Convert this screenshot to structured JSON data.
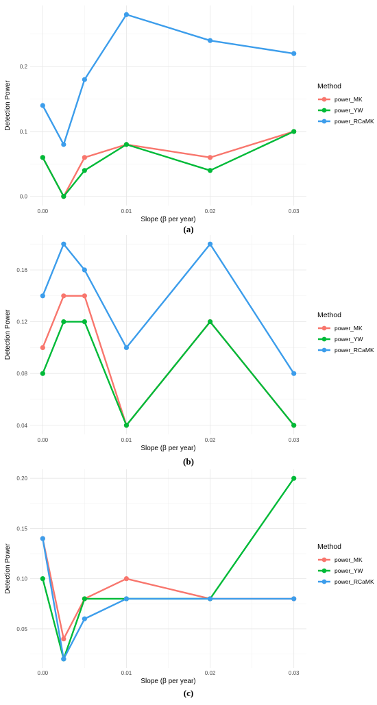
{
  "colors": {
    "power_MK": "#F8766D",
    "power_YW": "#00BA38",
    "power_RCaMK": "#3C9DEB"
  },
  "chart_data": [
    {
      "type": "line",
      "panel_label": "(a)",
      "xlabel": "Slope (β per year)",
      "ylabel": "Detection Power",
      "x": [
        0.0,
        0.0025,
        0.005,
        0.01,
        0.02,
        0.03
      ],
      "xticks": [
        "0.00",
        "0.01",
        "0.02",
        "0.03"
      ],
      "xtick_values": [
        0.0,
        0.01,
        0.02,
        0.03
      ],
      "yticks": [
        "0.0",
        "0.1",
        "0.2"
      ],
      "ytick_values": [
        0.0,
        0.1,
        0.2
      ],
      "xlim": [
        -0.0015,
        0.0315
      ],
      "ylim": [
        -0.014,
        0.294
      ],
      "legend_title": "Method",
      "legend_position": "right",
      "series": [
        {
          "name": "power_MK",
          "values": [
            0.06,
            0.0,
            0.06,
            0.08,
            0.06,
            0.1
          ]
        },
        {
          "name": "power_YW",
          "values": [
            0.06,
            0.0,
            0.04,
            0.08,
            0.04,
            0.1
          ]
        },
        {
          "name": "power_RCaMK",
          "values": [
            0.14,
            0.08,
            0.18,
            0.28,
            0.24,
            0.22
          ]
        }
      ]
    },
    {
      "type": "line",
      "panel_label": "(b)",
      "xlabel": "Slope (β per year)",
      "ylabel": "Detection Power",
      "x": [
        0.0,
        0.0025,
        0.005,
        0.01,
        0.02,
        0.03
      ],
      "xticks": [
        "0.00",
        "0.01",
        "0.02",
        "0.03"
      ],
      "xtick_values": [
        0.0,
        0.01,
        0.02,
        0.03
      ],
      "yticks": [
        "0.04",
        "0.08",
        "0.12",
        "0.16"
      ],
      "ytick_values": [
        0.04,
        0.08,
        0.12,
        0.16
      ],
      "xlim": [
        -0.0015,
        0.0315
      ],
      "ylim": [
        0.033,
        0.187
      ],
      "legend_title": "Method",
      "legend_position": "right",
      "series": [
        {
          "name": "power_MK",
          "values": [
            0.1,
            0.14,
            0.14,
            0.04,
            0.12,
            0.04
          ]
        },
        {
          "name": "power_YW",
          "values": [
            0.08,
            0.12,
            0.12,
            0.04,
            0.12,
            0.04
          ]
        },
        {
          "name": "power_RCaMK",
          "values": [
            0.14,
            0.18,
            0.16,
            0.1,
            0.18,
            0.08
          ]
        }
      ]
    },
    {
      "type": "line",
      "panel_label": "(c)",
      "xlabel": "Slope (β per year)",
      "ylabel": "Detection Power",
      "x": [
        0.0,
        0.0025,
        0.005,
        0.01,
        0.02,
        0.03
      ],
      "xticks": [
        "0.00",
        "0.01",
        "0.02",
        "0.03"
      ],
      "xtick_values": [
        0.0,
        0.01,
        0.02,
        0.03
      ],
      "yticks": [
        "0.05",
        "0.10",
        "0.15",
        "0.20"
      ],
      "ytick_values": [
        0.05,
        0.1,
        0.15,
        0.2
      ],
      "xlim": [
        -0.0015,
        0.0315
      ],
      "ylim": [
        0.011,
        0.209
      ],
      "legend_title": "Method",
      "legend_position": "right",
      "series": [
        {
          "name": "power_MK",
          "values": [
            0.14,
            0.04,
            0.08,
            0.1,
            0.08,
            0.08
          ]
        },
        {
          "name": "power_YW",
          "values": [
            0.1,
            0.02,
            0.08,
            0.08,
            0.08,
            0.2
          ]
        },
        {
          "name": "power_RCaMK",
          "values": [
            0.14,
            0.02,
            0.06,
            0.08,
            0.08,
            0.08
          ]
        }
      ]
    }
  ]
}
